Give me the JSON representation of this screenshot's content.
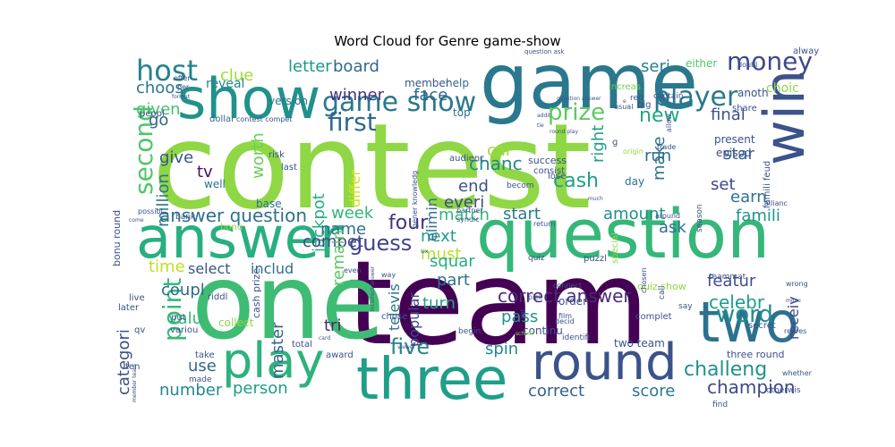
{
  "title": "Word Cloud for Genre game-show",
  "words": [
    {
      "text": "contest",
      "color": "#8fd744"
    },
    {
      "text": "team",
      "color": "#440154"
    },
    {
      "text": "one",
      "color": "#3fbc73"
    },
    {
      "text": "game",
      "color": "#2a788e"
    },
    {
      "text": "question",
      "color": "#35b779"
    },
    {
      "text": "show",
      "color": "#21918c"
    },
    {
      "text": "answer",
      "color": "#29af7f"
    },
    {
      "text": "three",
      "color": "#1f9e89"
    },
    {
      "text": "play",
      "color": "#2db27d"
    },
    {
      "text": "round",
      "color": "#3b528b"
    },
    {
      "text": "two",
      "color": "#2c728e"
    },
    {
      "text": "win",
      "color": "#3b528b"
    },
    {
      "text": "host",
      "color": "#26828e"
    },
    {
      "text": "player",
      "color": "#2a788e"
    },
    {
      "text": "game show",
      "color": "#2a788e"
    },
    {
      "text": "money",
      "color": "#3e4989"
    },
    {
      "text": "first",
      "color": "#31688e"
    },
    {
      "text": "second",
      "color": "#52c569"
    },
    {
      "text": "prize",
      "color": "#5ec962"
    },
    {
      "text": "word",
      "color": "#238a8d"
    },
    {
      "text": "point",
      "color": "#38b977"
    },
    {
      "text": "challeng",
      "color": "#21918c"
    },
    {
      "text": "five",
      "color": "#25838e"
    },
    {
      "text": "guess",
      "color": "#414487"
    },
    {
      "text": "cash",
      "color": "#1fa088"
    },
    {
      "text": "new",
      "color": "#21a685"
    },
    {
      "text": "champion",
      "color": "#3e4a89"
    },
    {
      "text": "four",
      "color": "#46327e"
    },
    {
      "text": "celebr",
      "color": "#1e9c89"
    },
    {
      "text": "correct answer",
      "color": "#472d7b"
    },
    {
      "text": "answer question",
      "color": "#2d708e"
    },
    {
      "text": "chanc",
      "color": "#238a8d"
    },
    {
      "text": "letter",
      "color": "#1f988b"
    },
    {
      "text": "board",
      "color": "#31688e"
    },
    {
      "text": "winner",
      "color": "#46327e"
    },
    {
      "text": "face",
      "color": "#31688e"
    },
    {
      "text": "seri",
      "color": "#26818e"
    },
    {
      "text": "clue",
      "color": "#a0da39"
    },
    {
      "text": "choos",
      "color": "#2a768e"
    },
    {
      "text": "given",
      "color": "#48c16e"
    },
    {
      "text": "go",
      "color": "#33638d"
    },
    {
      "text": "give",
      "color": "#3b528b"
    },
    {
      "text": "worth",
      "color": "#6ccd5a"
    },
    {
      "text": "million",
      "color": "#2c738e"
    },
    {
      "text": "tv",
      "color": "#471164"
    },
    {
      "text": "jackpot",
      "color": "#28ae80"
    },
    {
      "text": "compet",
      "color": "#3f4788"
    },
    {
      "text": "end",
      "color": "#3b528b"
    },
    {
      "text": "everi",
      "color": "#3e4989"
    },
    {
      "text": "car",
      "color": "#9dd93b"
    },
    {
      "text": "right",
      "color": "#1f9e89"
    },
    {
      "text": "run",
      "color": "#2e6e8e"
    },
    {
      "text": "make",
      "color": "#2c728e"
    },
    {
      "text": "final",
      "color": "#3a548c"
    },
    {
      "text": "star",
      "color": "#33638d"
    },
    {
      "text": "set",
      "color": "#3f4889"
    },
    {
      "text": "earn",
      "color": "#2c728e"
    },
    {
      "text": "famili",
      "color": "#1f948c"
    },
    {
      "text": "ask",
      "color": "#2c728e"
    },
    {
      "text": "amount",
      "color": "#21908d"
    },
    {
      "text": "match",
      "color": "#32b67a"
    },
    {
      "text": "start",
      "color": "#2a788e"
    },
    {
      "text": "next",
      "color": "#1e9b8a"
    },
    {
      "text": "must",
      "color": "#b5de2b"
    },
    {
      "text": "week",
      "color": "#31b57b"
    },
    {
      "text": "name",
      "color": "#2d718e"
    },
    {
      "text": "time",
      "color": "#c2df23"
    },
    {
      "text": "select",
      "color": "#3a548c"
    },
    {
      "text": "includ",
      "color": "#2e6e8e"
    },
    {
      "text": "coupl",
      "color": "#30698e"
    },
    {
      "text": "valu",
      "color": "#34b679"
    },
    {
      "text": "use",
      "color": "#306a8e"
    },
    {
      "text": "number",
      "color": "#24878e"
    },
    {
      "text": "categori",
      "color": "#3b528b"
    },
    {
      "text": "person",
      "color": "#1e9d89"
    },
    {
      "text": "master",
      "color": "#33628d"
    },
    {
      "text": "remain",
      "color": "#5ec962"
    },
    {
      "text": "tri",
      "color": "#482677"
    },
    {
      "text": "squar",
      "color": "#27ad81"
    },
    {
      "text": "part",
      "color": "#2c738e"
    },
    {
      "text": "turn",
      "color": "#21a585"
    },
    {
      "text": "pass",
      "color": "#21918c"
    },
    {
      "text": "spin",
      "color": "#23888e"
    },
    {
      "text": "correct",
      "color": "#34618d"
    },
    {
      "text": "score",
      "color": "#2a788e"
    },
    {
      "text": "featur",
      "color": "#3c4f8a"
    },
    {
      "text": "receiv",
      "color": "#3e4a89"
    },
    {
      "text": "popular",
      "color": "#3e4a89"
    },
    {
      "text": "televis",
      "color": "#2c738e"
    },
    {
      "text": "elimin",
      "color": "#2e6e8e"
    },
    {
      "text": "differ",
      "color": "#d2e21b"
    },
    {
      "text": "reveal",
      "color": "#24878e"
    },
    {
      "text": "member",
      "color": "#3b528b"
    },
    {
      "text": "help",
      "color": "#31688e"
    },
    {
      "text": "version",
      "color": "#2a788e"
    },
    {
      "text": "either",
      "color": "#52c569"
    },
    {
      "text": "anoth",
      "color": "#3b528b"
    },
    {
      "text": "increas",
      "color": "#6ece58"
    },
    {
      "text": "top",
      "color": "#2c738e"
    },
    {
      "text": "present",
      "color": "#3b528b"
    },
    {
      "text": "episod",
      "color": "#3b528b"
    },
    {
      "text": "well",
      "color": "#2d708e"
    },
    {
      "text": "base",
      "color": "#2c728e"
    },
    {
      "text": "three round",
      "color": "#3b528b"
    },
    {
      "text": "quiz show",
      "color": "#8fd744"
    },
    {
      "text": "two team",
      "color": "#3b528b"
    },
    {
      "text": "continu",
      "color": "#3b528b"
    },
    {
      "text": "bonu round",
      "color": "#3b528b"
    },
    {
      "text": "cash prize",
      "color": "#3b528b"
    },
    {
      "text": "day",
      "color": "#2c728e"
    },
    {
      "text": "success",
      "color": "#3b528b"
    },
    {
      "text": "lose",
      "color": "#3b528b"
    },
    {
      "text": "consist",
      "color": "#3b528b"
    },
    {
      "text": "dollar",
      "color": "#31688e"
    },
    {
      "text": "contest compet",
      "color": "#3b528b"
    },
    {
      "text": "peopl",
      "color": "#3b528b"
    },
    {
      "text": "big",
      "color": "#3b528b"
    },
    {
      "text": "captain",
      "color": "#3b528b"
    },
    {
      "text": "red",
      "color": "#3b528b"
    },
    {
      "text": "share",
      "color": "#3b528b"
    },
    {
      "text": "choic",
      "color": "#8fd744"
    },
    {
      "text": "risk",
      "color": "#3b528b"
    },
    {
      "text": "last",
      "color": "#3b528b"
    },
    {
      "text": "bank",
      "color": "#3b528b"
    },
    {
      "text": "famili feud",
      "color": "#3b528b"
    },
    {
      "text": "award",
      "color": "#3b528b"
    },
    {
      "text": "total",
      "color": "#3b528b"
    },
    {
      "text": "collect",
      "color": "#8fd744"
    },
    {
      "text": "take",
      "color": "#3b528b"
    },
    {
      "text": "order",
      "color": "#3b528b"
    },
    {
      "text": "chose",
      "color": "#3b528b"
    },
    {
      "text": "puzzl",
      "color": "#3b528b"
    },
    {
      "text": "special",
      "color": "#8fd744"
    },
    {
      "text": "complet",
      "color": "#3b528b"
    },
    {
      "text": "secret",
      "color": "#3b528b"
    },
    {
      "text": "live",
      "color": "#3b528b"
    },
    {
      "text": "later",
      "color": "#3b528b"
    },
    {
      "text": "put",
      "color": "#3b528b"
    },
    {
      "text": "variou",
      "color": "#3b528b"
    },
    {
      "text": "riddl",
      "color": "#3b528b"
    },
    {
      "text": "ten",
      "color": "#3b528b"
    },
    {
      "text": "made",
      "color": "#3b528b"
    },
    {
      "text": "bonu",
      "color": "#8fd744"
    },
    {
      "text": "qv",
      "color": "#3b528b"
    },
    {
      "text": "gener knowledg",
      "color": "#3b528b"
    },
    {
      "text": "audienc",
      "color": "#3b528b"
    },
    {
      "text": "partner",
      "color": "#3b528b"
    },
    {
      "text": "becom",
      "color": "#3b528b"
    },
    {
      "text": "syndic",
      "color": "#3b528b"
    },
    {
      "text": "return",
      "color": "#3b528b"
    },
    {
      "text": "quiz",
      "color": "#3b528b"
    },
    {
      "text": "connect",
      "color": "#3b528b"
    },
    {
      "text": "pick",
      "color": "#3b528b"
    },
    {
      "text": "film",
      "color": "#3b528b"
    },
    {
      "text": "begin",
      "color": "#3b528b"
    },
    {
      "text": "identifi",
      "color": "#3b528b"
    },
    {
      "text": "say",
      "color": "#3b528b"
    },
    {
      "text": "call",
      "color": "#3b528b"
    },
    {
      "text": "chosen",
      "color": "#3b528b"
    },
    {
      "text": "teammat",
      "color": "#3b528b"
    },
    {
      "text": "season",
      "color": "#3b528b"
    },
    {
      "text": "around",
      "color": "#3b528b"
    },
    {
      "text": "allianc",
      "color": "#3b528b"
    },
    {
      "text": "otherwis",
      "color": "#3b528b"
    },
    {
      "text": "find",
      "color": "#3b528b"
    },
    {
      "text": "whether",
      "color": "#3b528b"
    },
    {
      "text": "possibl",
      "color": "#3b528b"
    },
    {
      "text": "come",
      "color": "#3b528b"
    },
    {
      "text": "even",
      "color": "#3b528b"
    },
    {
      "text": "way",
      "color": "#3b528b"
    },
    {
      "text": "offer",
      "color": "#3b528b"
    },
    {
      "text": "per",
      "color": "#3b528b"
    },
    {
      "text": "format",
      "color": "#3b528b"
    },
    {
      "text": "usual",
      "color": "#3b528b"
    },
    {
      "text": "decid",
      "color": "#3b528b"
    },
    {
      "text": "trade",
      "color": "#3b528b"
    },
    {
      "text": "allow",
      "color": "#3b528b"
    },
    {
      "text": "six",
      "color": "#3b528b"
    },
    {
      "text": "tie",
      "color": "#3b528b"
    },
    {
      "text": "round play",
      "color": "#3b528b"
    },
    {
      "text": "addit",
      "color": "#3b528b"
    },
    {
      "text": "e",
      "color": "#3b528b"
    },
    {
      "text": "g",
      "color": "#3b528b"
    },
    {
      "text": "origin",
      "color": "#8fd744"
    },
    {
      "text": "alway",
      "color": "#3b528b"
    },
    {
      "text": "doubl",
      "color": "#3b528b"
    },
    {
      "text": "got",
      "color": "#3b528b"
    },
    {
      "text": "school",
      "color": "#8fd744"
    },
    {
      "text": "repres",
      "color": "#3b528b"
    },
    {
      "text": "move",
      "color": "#3b528b"
    },
    {
      "text": "wrong",
      "color": "#3b528b"
    },
    {
      "text": "much",
      "color": "#3b528b"
    },
    {
      "text": "card",
      "color": "#3b528b"
    },
    {
      "text": "viewer",
      "color": "#3b528b"
    },
    {
      "text": "member team",
      "color": "#3b528b"
    },
    {
      "text": "incorrect answer",
      "color": "#3b528b"
    },
    {
      "text": "question ask",
      "color": "#3b528b"
    },
    {
      "text": "question answer",
      "color": "#3b528b"
    }
  ]
}
